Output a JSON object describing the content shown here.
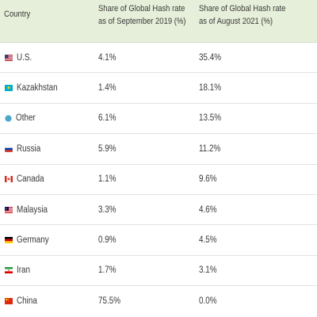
{
  "table": {
    "headers": {
      "country": "Country",
      "sept2019_line1": "Share of Global Hash rate",
      "sept2019_line2": "as of September 2019 (%)",
      "aug2021_line1": "Share of Global Hash rate",
      "aug2021_line2": "as of August 2021 (%)"
    },
    "rows": [
      {
        "country": "U.S.",
        "flag_icon": "us-flag-icon",
        "sept2019": "4.1%",
        "aug2021": "35.4%"
      },
      {
        "country": "Kazakhstan",
        "flag_icon": "kazakhstan-flag-icon",
        "sept2019": "1.4%",
        "aug2021": "18.1%"
      },
      {
        "country": "Other",
        "flag_icon": "globe-icon",
        "sept2019": "6.1%",
        "aug2021": "13.5%"
      },
      {
        "country": "Russia",
        "flag_icon": "russia-flag-icon",
        "sept2019": "5.9%",
        "aug2021": "11.2%"
      },
      {
        "country": "Canada",
        "flag_icon": "canada-flag-icon",
        "sept2019": "1.1%",
        "aug2021": "9.6%"
      },
      {
        "country": "Malaysia",
        "flag_icon": "malaysia-flag-icon",
        "sept2019": "3.3%",
        "aug2021": "4.6%"
      },
      {
        "country": "Germany",
        "flag_icon": "germany-flag-icon",
        "sept2019": "0.9%",
        "aug2021": "4.5%"
      },
      {
        "country": "Iran",
        "flag_icon": "iran-flag-icon",
        "sept2019": "1.7%",
        "aug2021": "3.1%"
      },
      {
        "country": "China",
        "flag_icon": "china-flag-icon",
        "sept2019": "75.5%",
        "aug2021": "0.0%"
      }
    ]
  }
}
